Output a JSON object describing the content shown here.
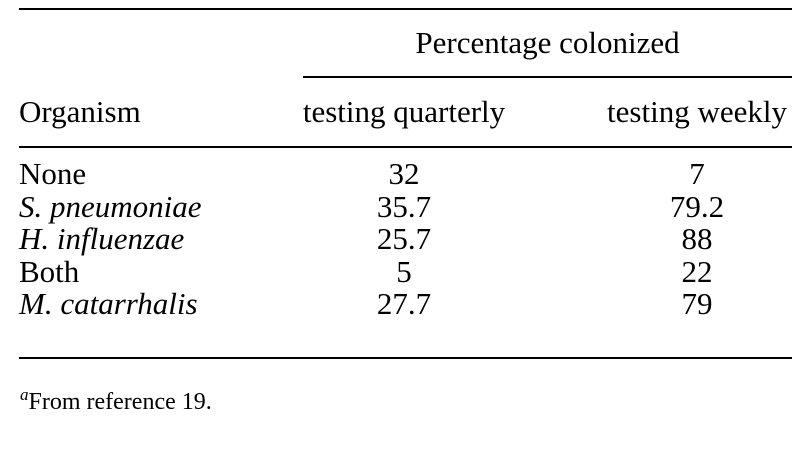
{
  "page": {
    "background_color": "#ffffff",
    "text_color": "#000000"
  },
  "table": {
    "spanner_header": "Percentage colonized",
    "columns": [
      {
        "label": "Organism"
      },
      {
        "label": "testing quarterly"
      },
      {
        "label": "testing weekly"
      }
    ],
    "rows": [
      {
        "organism": "None",
        "quarterly": "32",
        "weekly": "7"
      },
      {
        "organism": "S. pneumoniae",
        "quarterly": "35.7",
        "weekly": "79.2"
      },
      {
        "organism": "H. influenzae",
        "quarterly": "25.7",
        "weekly": "88"
      },
      {
        "organism": "Both",
        "quarterly": "5",
        "weekly": "22"
      },
      {
        "organism": "M. catarrhalis",
        "quarterly": "27.7",
        "weekly": "79"
      }
    ]
  },
  "footnote": {
    "marker": "a",
    "text": "From reference 19."
  },
  "chart_data": {
    "type": "table",
    "title": "Percentage colonized",
    "categories": [
      "None",
      "S. pneumoniae",
      "H. influenzae",
      "Both",
      "M. catarrhalis"
    ],
    "series": [
      {
        "name": "testing quarterly",
        "values": [
          32,
          35.7,
          25.7,
          5,
          27.7
        ]
      },
      {
        "name": "testing weekly",
        "values": [
          7,
          79.2,
          88,
          22,
          79
        ]
      }
    ],
    "footnote": "aFrom reference 19."
  }
}
